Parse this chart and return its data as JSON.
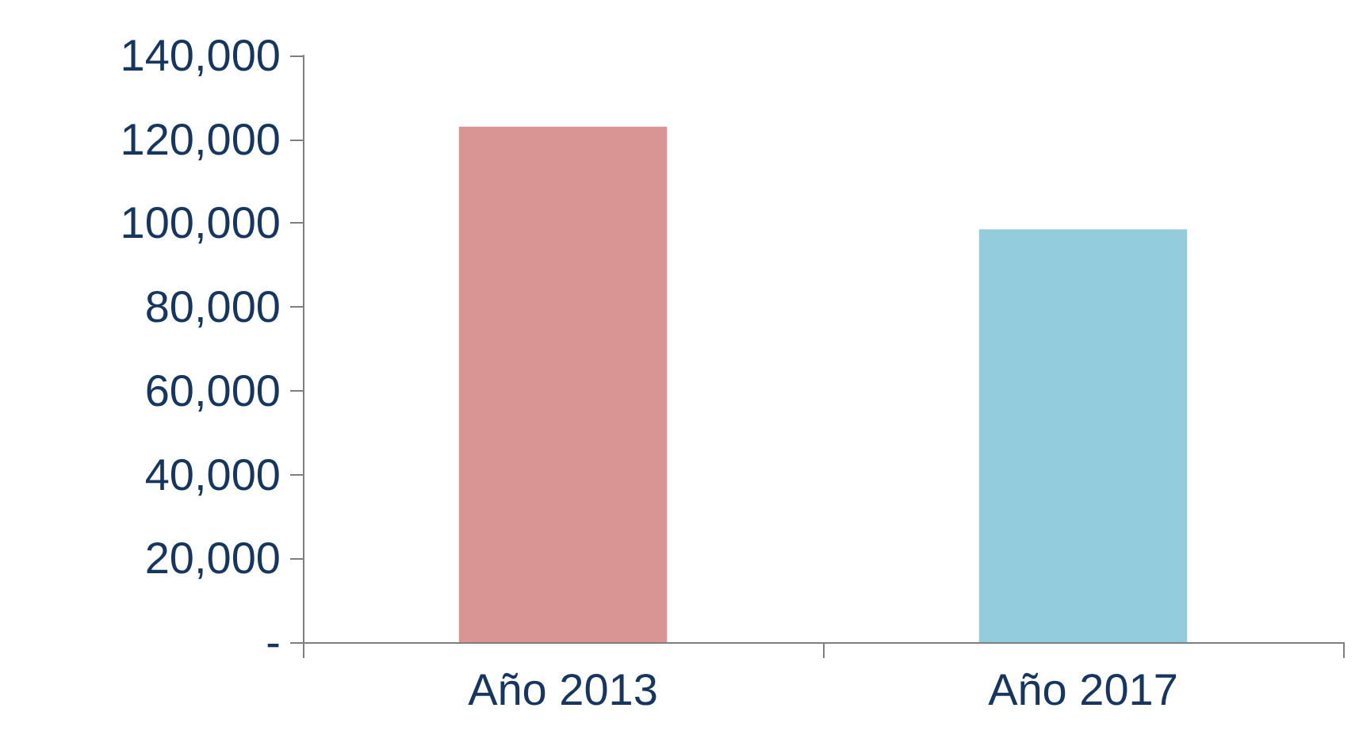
{
  "chart_data": {
    "type": "bar",
    "categories": [
      "Año 2013",
      "Año 2017"
    ],
    "values": [
      123000,
      98500
    ],
    "colors": [
      "#d99594",
      "#93cddd"
    ],
    "ylim": [
      0,
      140000
    ],
    "yticks": [
      {
        "value": 0,
        "label": "-"
      },
      {
        "value": 20000,
        "label": "20,000"
      },
      {
        "value": 40000,
        "label": "40,000"
      },
      {
        "value": 60000,
        "label": "60,000"
      },
      {
        "value": 80000,
        "label": "80,000"
      },
      {
        "value": 100000,
        "label": "100,000"
      },
      {
        "value": 120000,
        "label": "120,000"
      },
      {
        "value": 140000,
        "label": "140,000"
      }
    ],
    "grid": false
  }
}
